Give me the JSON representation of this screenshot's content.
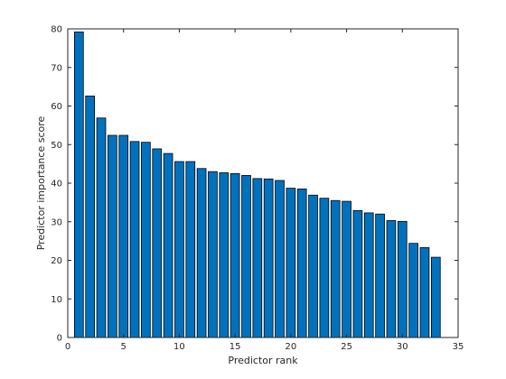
{
  "chart_data": {
    "type": "bar",
    "xlabel": "Predictor rank",
    "ylabel": "Predictor importance score",
    "xlim": [
      0,
      35
    ],
    "ylim": [
      0,
      80
    ],
    "xticks": [
      0,
      5,
      10,
      15,
      20,
      25,
      30,
      35
    ],
    "yticks": [
      0,
      10,
      20,
      30,
      40,
      50,
      60,
      70,
      80
    ],
    "grid": false,
    "bar_color": "#0072BD",
    "x": [
      1,
      2,
      3,
      4,
      5,
      6,
      7,
      8,
      9,
      10,
      11,
      12,
      13,
      14,
      15,
      16,
      17,
      18,
      19,
      20,
      21,
      22,
      23,
      24,
      25,
      26,
      27,
      28,
      29,
      30,
      31,
      32,
      33
    ],
    "values": [
      79.2,
      62.6,
      56.9,
      52.4,
      52.4,
      50.8,
      50.6,
      48.9,
      47.7,
      45.6,
      45.6,
      43.8,
      43.0,
      42.7,
      42.5,
      42.0,
      41.2,
      41.1,
      40.7,
      38.7,
      38.5,
      36.9,
      36.1,
      35.5,
      35.3,
      32.9,
      32.3,
      32.0,
      30.3,
      30.1,
      24.4,
      23.3,
      20.8
    ]
  }
}
